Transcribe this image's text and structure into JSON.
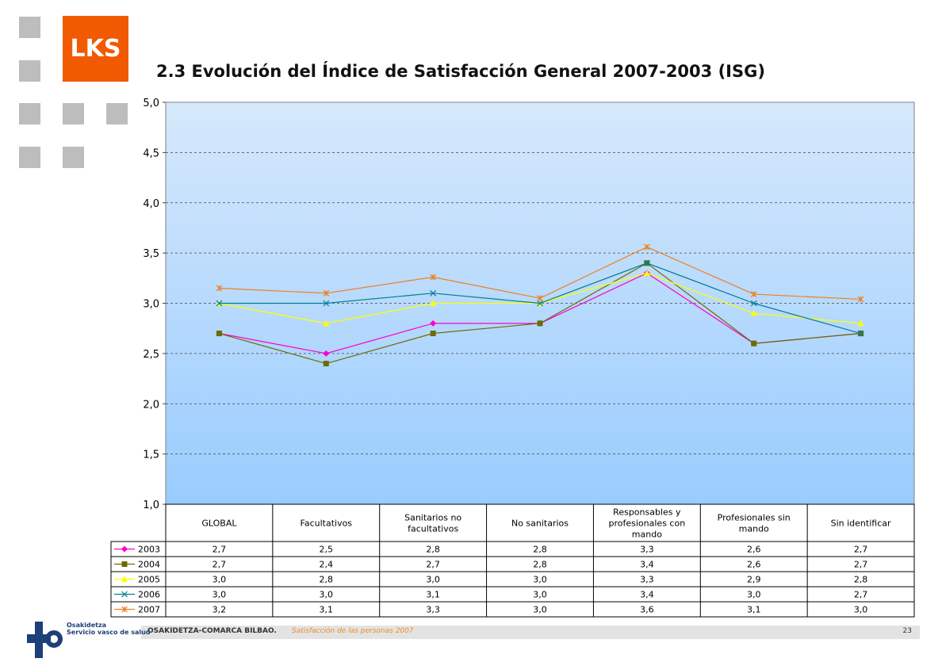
{
  "header": {
    "logo_text": "LKS",
    "title": "2.3 Evolución del Índice de Satisfacción General 2007-2003 (ISG)"
  },
  "colors": {
    "brand_orange": "#f15a00",
    "deco_gray": "#bdbdbd",
    "plot_bg_top": "#d6e8fb",
    "plot_bg_bottom": "#99ccff"
  },
  "chart_data": {
    "type": "line",
    "title": "",
    "xlabel": "",
    "ylabel": "",
    "ylim": [
      1.0,
      5.0
    ],
    "yticks": [
      "1,0",
      "1,5",
      "2,0",
      "2,5",
      "3,0",
      "3,5",
      "4,0",
      "4,5",
      "5,0"
    ],
    "grid": true,
    "legend": "table-left",
    "categories": [
      "GLOBAL",
      "Facultativos",
      "Sanitarios no facultativos",
      "No sanitarios",
      "Responsables y profesionales con mando",
      "Profesionales sin mando",
      "Sin identificar"
    ],
    "series": [
      {
        "name": "2003",
        "color": "#ff00cc",
        "marker": "diamond",
        "values": [
          2.7,
          2.5,
          2.8,
          2.8,
          3.3,
          2.6,
          2.7
        ],
        "labels": [
          "2,7",
          "2,5",
          "2,8",
          "2,8",
          "3,3",
          "2,6",
          "2,7"
        ]
      },
      {
        "name": "2004",
        "color": "#6b6b00",
        "marker": "square",
        "values": [
          2.7,
          2.4,
          2.7,
          2.8,
          3.4,
          2.6,
          2.7
        ],
        "labels": [
          "2,7",
          "2,4",
          "2,7",
          "2,8",
          "3,4",
          "2,6",
          "2,7"
        ]
      },
      {
        "name": "2005",
        "color": "#ffff00",
        "marker": "triangle",
        "values": [
          3.0,
          2.8,
          3.0,
          3.0,
          3.3,
          2.9,
          2.8
        ],
        "labels": [
          "3,0",
          "2,8",
          "3,0",
          "3,0",
          "3,3",
          "2,9",
          "2,8"
        ]
      },
      {
        "name": "2006",
        "color": "#007f8f",
        "marker": "x",
        "values": [
          3.0,
          3.0,
          3.1,
          3.0,
          3.4,
          3.0,
          2.7
        ],
        "labels": [
          "3,0",
          "3,0",
          "3,1",
          "3,0",
          "3,4",
          "3,0",
          "2,7"
        ]
      },
      {
        "name": "2007",
        "color": "#f07f1e",
        "marker": "star",
        "values": [
          3.15,
          3.1,
          3.26,
          3.05,
          3.56,
          3.09,
          3.04
        ],
        "labels": [
          "3,2",
          "3,1",
          "3,3",
          "3,0",
          "3,6",
          "3,1",
          "3,0"
        ]
      }
    ]
  },
  "footer": {
    "org": "OSAKIDETZA-COMARCA BILBAO.",
    "subtitle": "Satisfacción de las personas 2007",
    "page": "23",
    "logo_line1": "Osakidetza",
    "logo_line2": "Servicio vasco de salud"
  }
}
